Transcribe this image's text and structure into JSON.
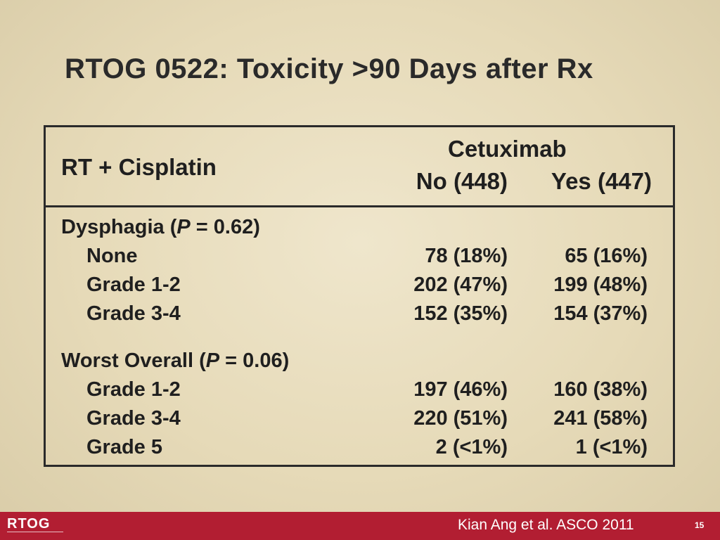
{
  "slide": {
    "title": "RTOG 0522: Toxicity >90 Days after Rx"
  },
  "table": {
    "row_header": "RT + Cisplatin",
    "group_header": "Cetuximab",
    "col_no": "No (448)",
    "col_yes": "Yes (447)",
    "sections": [
      {
        "name_main": "Dysphagia (",
        "name_p": "P",
        "name_rest": " = 0.62)",
        "rows": [
          {
            "label": "None",
            "no": "78 (18%)",
            "yes": "65 (16%)"
          },
          {
            "label": "Grade 1-2",
            "no": "202 (47%)",
            "yes": "199 (48%)"
          },
          {
            "label": "Grade 3-4",
            "no": "152 (35%)",
            "yes": "154 (37%)"
          }
        ]
      },
      {
        "name_main": "Worst Overall (",
        "name_p": "P",
        "name_rest": " = 0.06)",
        "rows": [
          {
            "label": "Grade 1-2",
            "no": "197 (46%)",
            "yes": "160 (38%)"
          },
          {
            "label": "Grade 3-4",
            "no": "220 (51%)",
            "yes": "241 (58%)"
          },
          {
            "label": "Grade 5",
            "no": "2 (<1%)",
            "yes": "1 (<1%)"
          }
        ]
      }
    ]
  },
  "footer": {
    "logo": "RTOG",
    "citation": "Kian Ang et al. ASCO 2011",
    "page": "15",
    "color": "#b21e32"
  }
}
